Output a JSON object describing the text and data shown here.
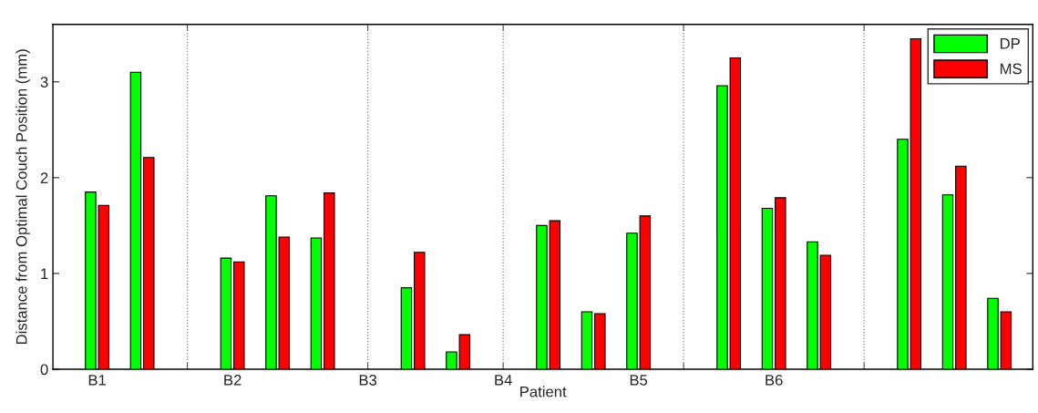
{
  "chart_data": {
    "type": "bar",
    "xlabel": "Patient",
    "ylabel": "Distance from Optimal Couch Position (mm)",
    "categories": [
      "B1",
      null,
      null,
      "B2",
      null,
      null,
      "B3",
      null,
      null,
      "B4",
      null,
      null,
      "B5",
      null,
      null,
      "B6",
      null,
      null,
      null,
      null,
      null
    ],
    "series": [
      {
        "name": "DP",
        "color": "#00ff00",
        "values": [
          1.85,
          3.1,
          null,
          1.16,
          1.81,
          1.37,
          null,
          0.85,
          0.18,
          null,
          1.5,
          0.6,
          1.42,
          null,
          2.96,
          1.68,
          1.33,
          null,
          2.4,
          1.82,
          0.74
        ]
      },
      {
        "name": "MS",
        "color": "#ff0000",
        "values": [
          1.71,
          2.21,
          null,
          1.12,
          1.38,
          1.84,
          null,
          1.22,
          0.36,
          null,
          1.55,
          0.58,
          1.6,
          null,
          3.25,
          1.79,
          1.19,
          null,
          3.45,
          2.12,
          0.6
        ]
      }
    ],
    "ylim": [
      0,
      3.6
    ],
    "yticks": [
      0,
      1,
      2,
      3
    ],
    "legend": "top right",
    "grid": "x"
  }
}
